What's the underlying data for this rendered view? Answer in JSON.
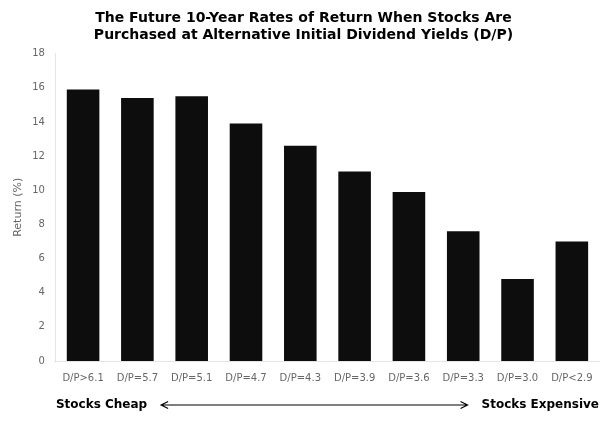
{
  "chart_data": {
    "type": "bar",
    "title": "The Future 10-Year Rates of Return When Stocks Are\nPurchased at Alternative Initial Dividend Yields (D/P)",
    "ylabel": "Return (%)",
    "categories": [
      "D/P>6.1",
      "D/P=5.7",
      "D/P=5.1",
      "D/P=4.7",
      "D/P=4.3",
      "D/P=3.9",
      "D/P=3.6",
      "D/P=3.3",
      "D/P=3.0",
      "D/P<2.9"
    ],
    "values": [
      15.9,
      15.4,
      15.5,
      13.9,
      12.6,
      11.1,
      9.9,
      7.6,
      4.8,
      7.0
    ],
    "color": "#0d0d0d",
    "ylim": [
      0,
      18
    ],
    "yticks": [
      0,
      2,
      4,
      6,
      8,
      10,
      12,
      14,
      16,
      18
    ],
    "grid": false,
    "annotations": [
      "Stocks Cheap",
      "Stocks Expensive"
    ]
  }
}
